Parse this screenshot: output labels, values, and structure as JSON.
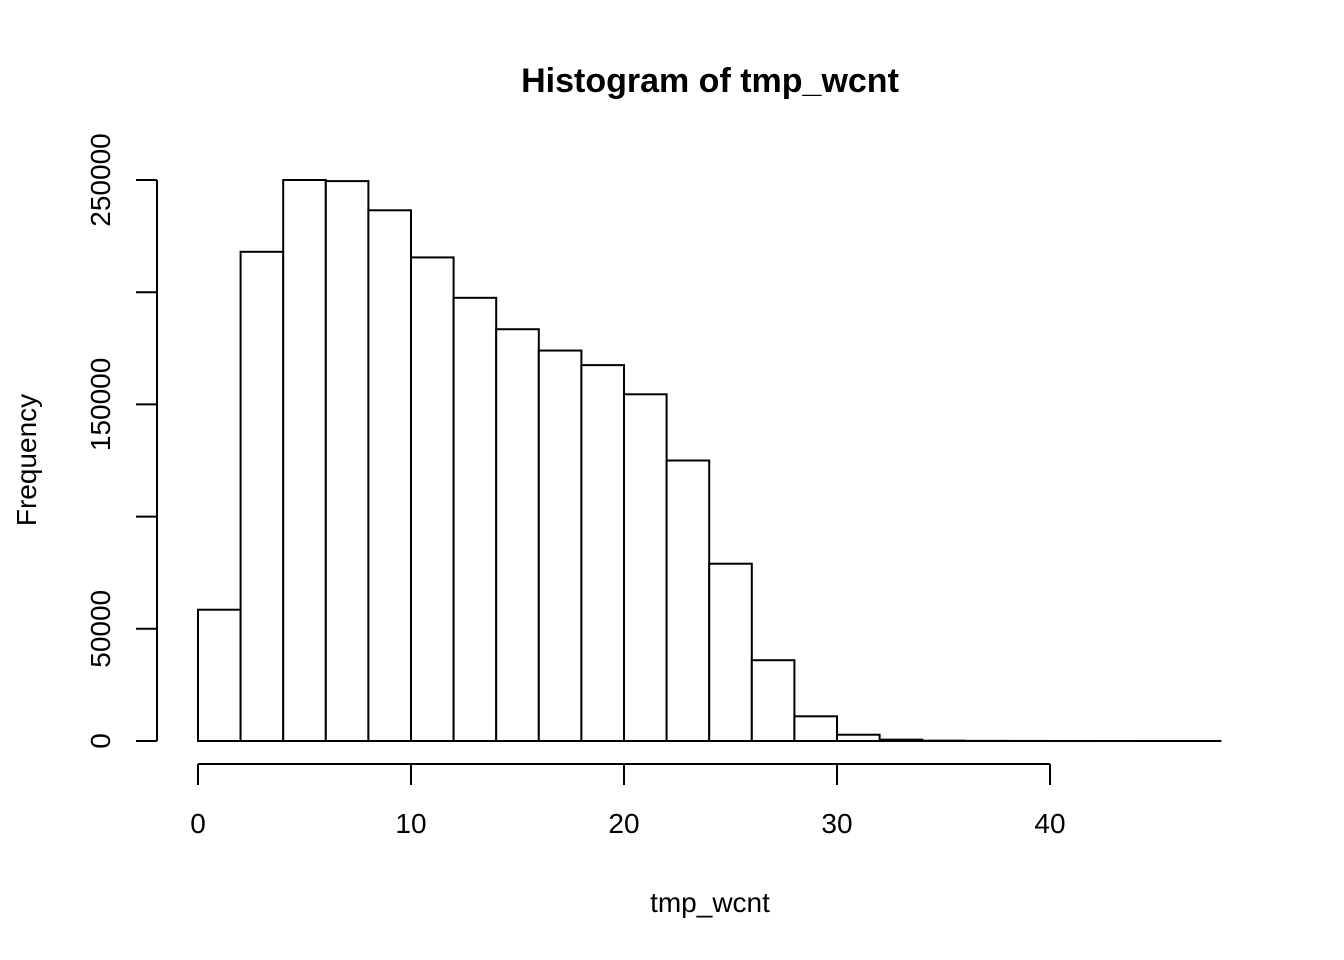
{
  "chart_data": {
    "type": "bar",
    "subtype": "histogram",
    "title": "Histogram of tmp_wcnt",
    "xlabel": "tmp_wcnt",
    "ylabel": "Frequency",
    "bin_edges": [
      0,
      2,
      4,
      6,
      8,
      10,
      12,
      14,
      16,
      18,
      20,
      22,
      24,
      26,
      28,
      30,
      32,
      34,
      36,
      38,
      40,
      42,
      44,
      46,
      48
    ],
    "values": [
      58500,
      218000,
      250000,
      249500,
      236500,
      215500,
      197500,
      183500,
      174000,
      167500,
      154500,
      125000,
      79000,
      36000,
      11000,
      2800,
      600,
      150,
      50,
      20,
      10,
      5,
      2,
      1
    ],
    "xlim": [
      0,
      48
    ],
    "ylim": [
      0,
      250000
    ],
    "x_ticks": [
      0,
      10,
      20,
      30,
      40
    ],
    "x_tick_labels": [
      "0",
      "10",
      "20",
      "30",
      "40"
    ],
    "y_ticks": [
      0,
      50000,
      100000,
      150000,
      200000,
      250000
    ],
    "y_tick_labels": [
      "0",
      "50000",
      "",
      "150000",
      "",
      "250000"
    ],
    "grid": false,
    "colors": {
      "bar_fill": "#ffffff",
      "bar_stroke": "#000000",
      "background": "#ffffff"
    }
  }
}
